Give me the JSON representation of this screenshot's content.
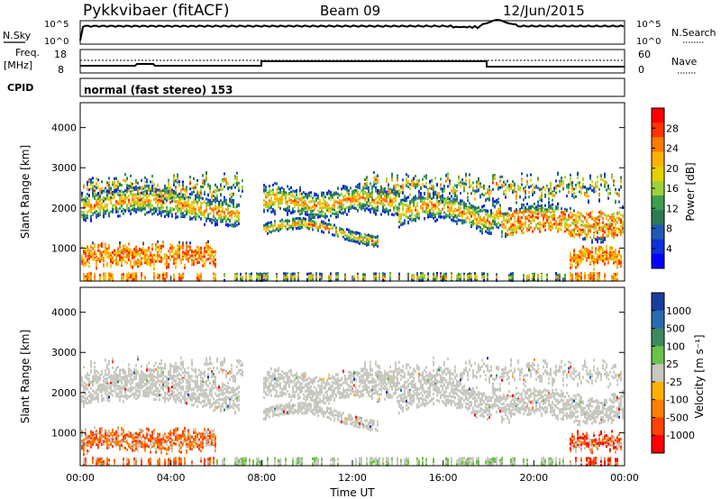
{
  "header": {
    "title": "Pykkvibaer (fitACF)",
    "beam": "Beam 09",
    "date": "12/Jun/2015"
  },
  "noise_panel": {
    "left_label": "N.Sky",
    "right_label": "N.Search",
    "left_ticks": [
      "10^5",
      "10^0"
    ],
    "right_ticks": [
      "10^5",
      "10^0"
    ]
  },
  "freq_panel": {
    "left_label_1": "Freq.",
    "left_label_2": "[MHz]",
    "right_label": "Nave",
    "left_ticks": [
      "18",
      "8"
    ],
    "right_ticks": [
      "60",
      "0"
    ]
  },
  "cpid_panel": {
    "label": "CPID",
    "text": "normal (fast stereo) 153"
  },
  "chart_data": [
    {
      "type": "heatmap",
      "name": "power",
      "ylabel": "Slant Range [km]",
      "yticks": [
        "4000",
        "3000",
        "2000",
        "1000"
      ],
      "ylim": [
        180,
        4620
      ],
      "colorbar_label": "Power [dB]",
      "colorbar_ticks": [
        "28",
        "24",
        "20",
        "16",
        "12",
        "8",
        "4"
      ],
      "colorbar_colors": [
        "#ff0000",
        "#ff3300",
        "#ff7a00",
        "#ffb000",
        "#e6d000",
        "#9ed23a",
        "#3ca04e",
        "#2c7a55",
        "#1f5ab4",
        "#1030d8",
        "#0000ff"
      ]
    },
    {
      "type": "heatmap",
      "name": "velocity",
      "ylabel": "Slant Range [km]",
      "yticks": [
        "4000",
        "3000",
        "2000",
        "1000"
      ],
      "ylim": [
        180,
        4620
      ],
      "xlabel": "Time UT",
      "xticks": [
        "00:00",
        "04:00",
        "08:00",
        "12:00",
        "16:00",
        "20:00",
        "00:00"
      ],
      "colorbar_label": "Velocity [m s⁻¹]",
      "colorbar_ticks": [
        "1000",
        "500",
        "100",
        "25",
        "-25",
        "-100",
        "-500",
        "-1000"
      ],
      "colorbar_colors": [
        "#1a3ea0",
        "#2a6ab4",
        "#3d8a5e",
        "#6ac24a",
        "#c8c8c0",
        "#ffb000",
        "#ff8000",
        "#ff4000",
        "#ff0000"
      ]
    }
  ]
}
